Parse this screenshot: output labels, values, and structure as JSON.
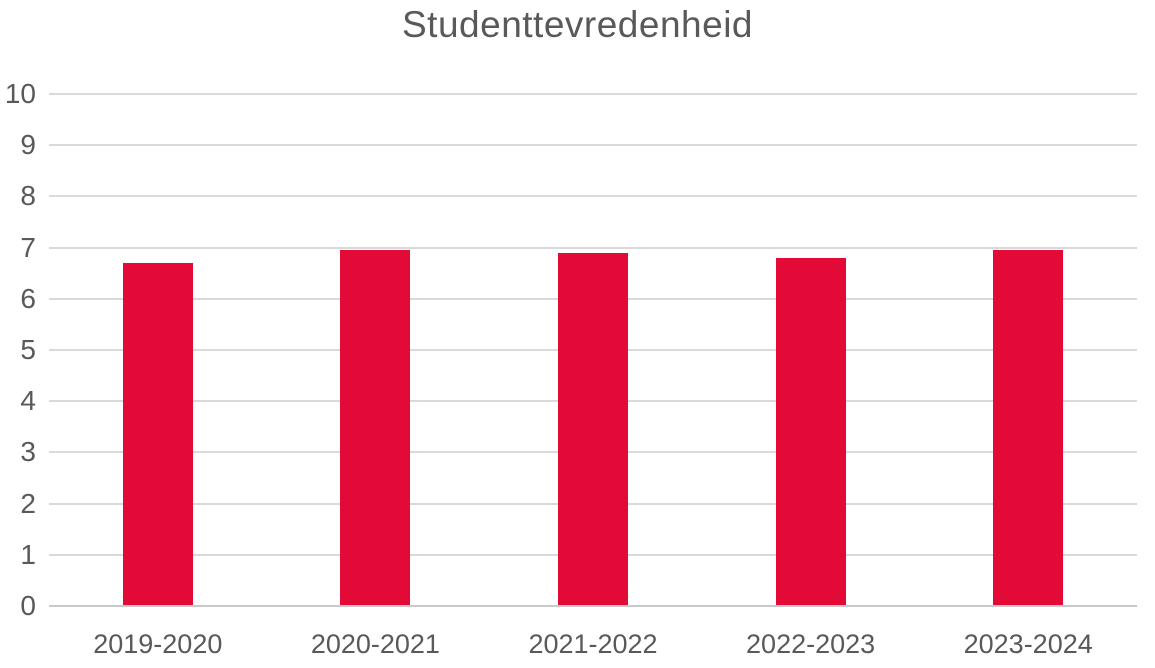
{
  "chart_data": {
    "type": "bar",
    "title": "Studenttevredenheid",
    "categories": [
      "2019-2020",
      "2020-2021",
      "2021-2022",
      "2022-2023",
      "2023-2024"
    ],
    "values": [
      6.7,
      6.95,
      6.9,
      6.8,
      6.95
    ],
    "xlabel": "",
    "ylabel": "",
    "ylim": [
      0,
      10
    ],
    "ytick_interval": 1,
    "ytick_labels": [
      "0",
      "1",
      "2",
      "3",
      "4",
      "5",
      "6",
      "7",
      "8",
      "9",
      "10"
    ],
    "grid": true,
    "legend_position": "none",
    "bar_color": "#E40A37",
    "title_color": "#595959",
    "tick_label_color": "#595959",
    "gridline_color": "#D9D9D9",
    "axis_line_color": "#C9C9C9",
    "background_color": "#FFFFFF"
  }
}
